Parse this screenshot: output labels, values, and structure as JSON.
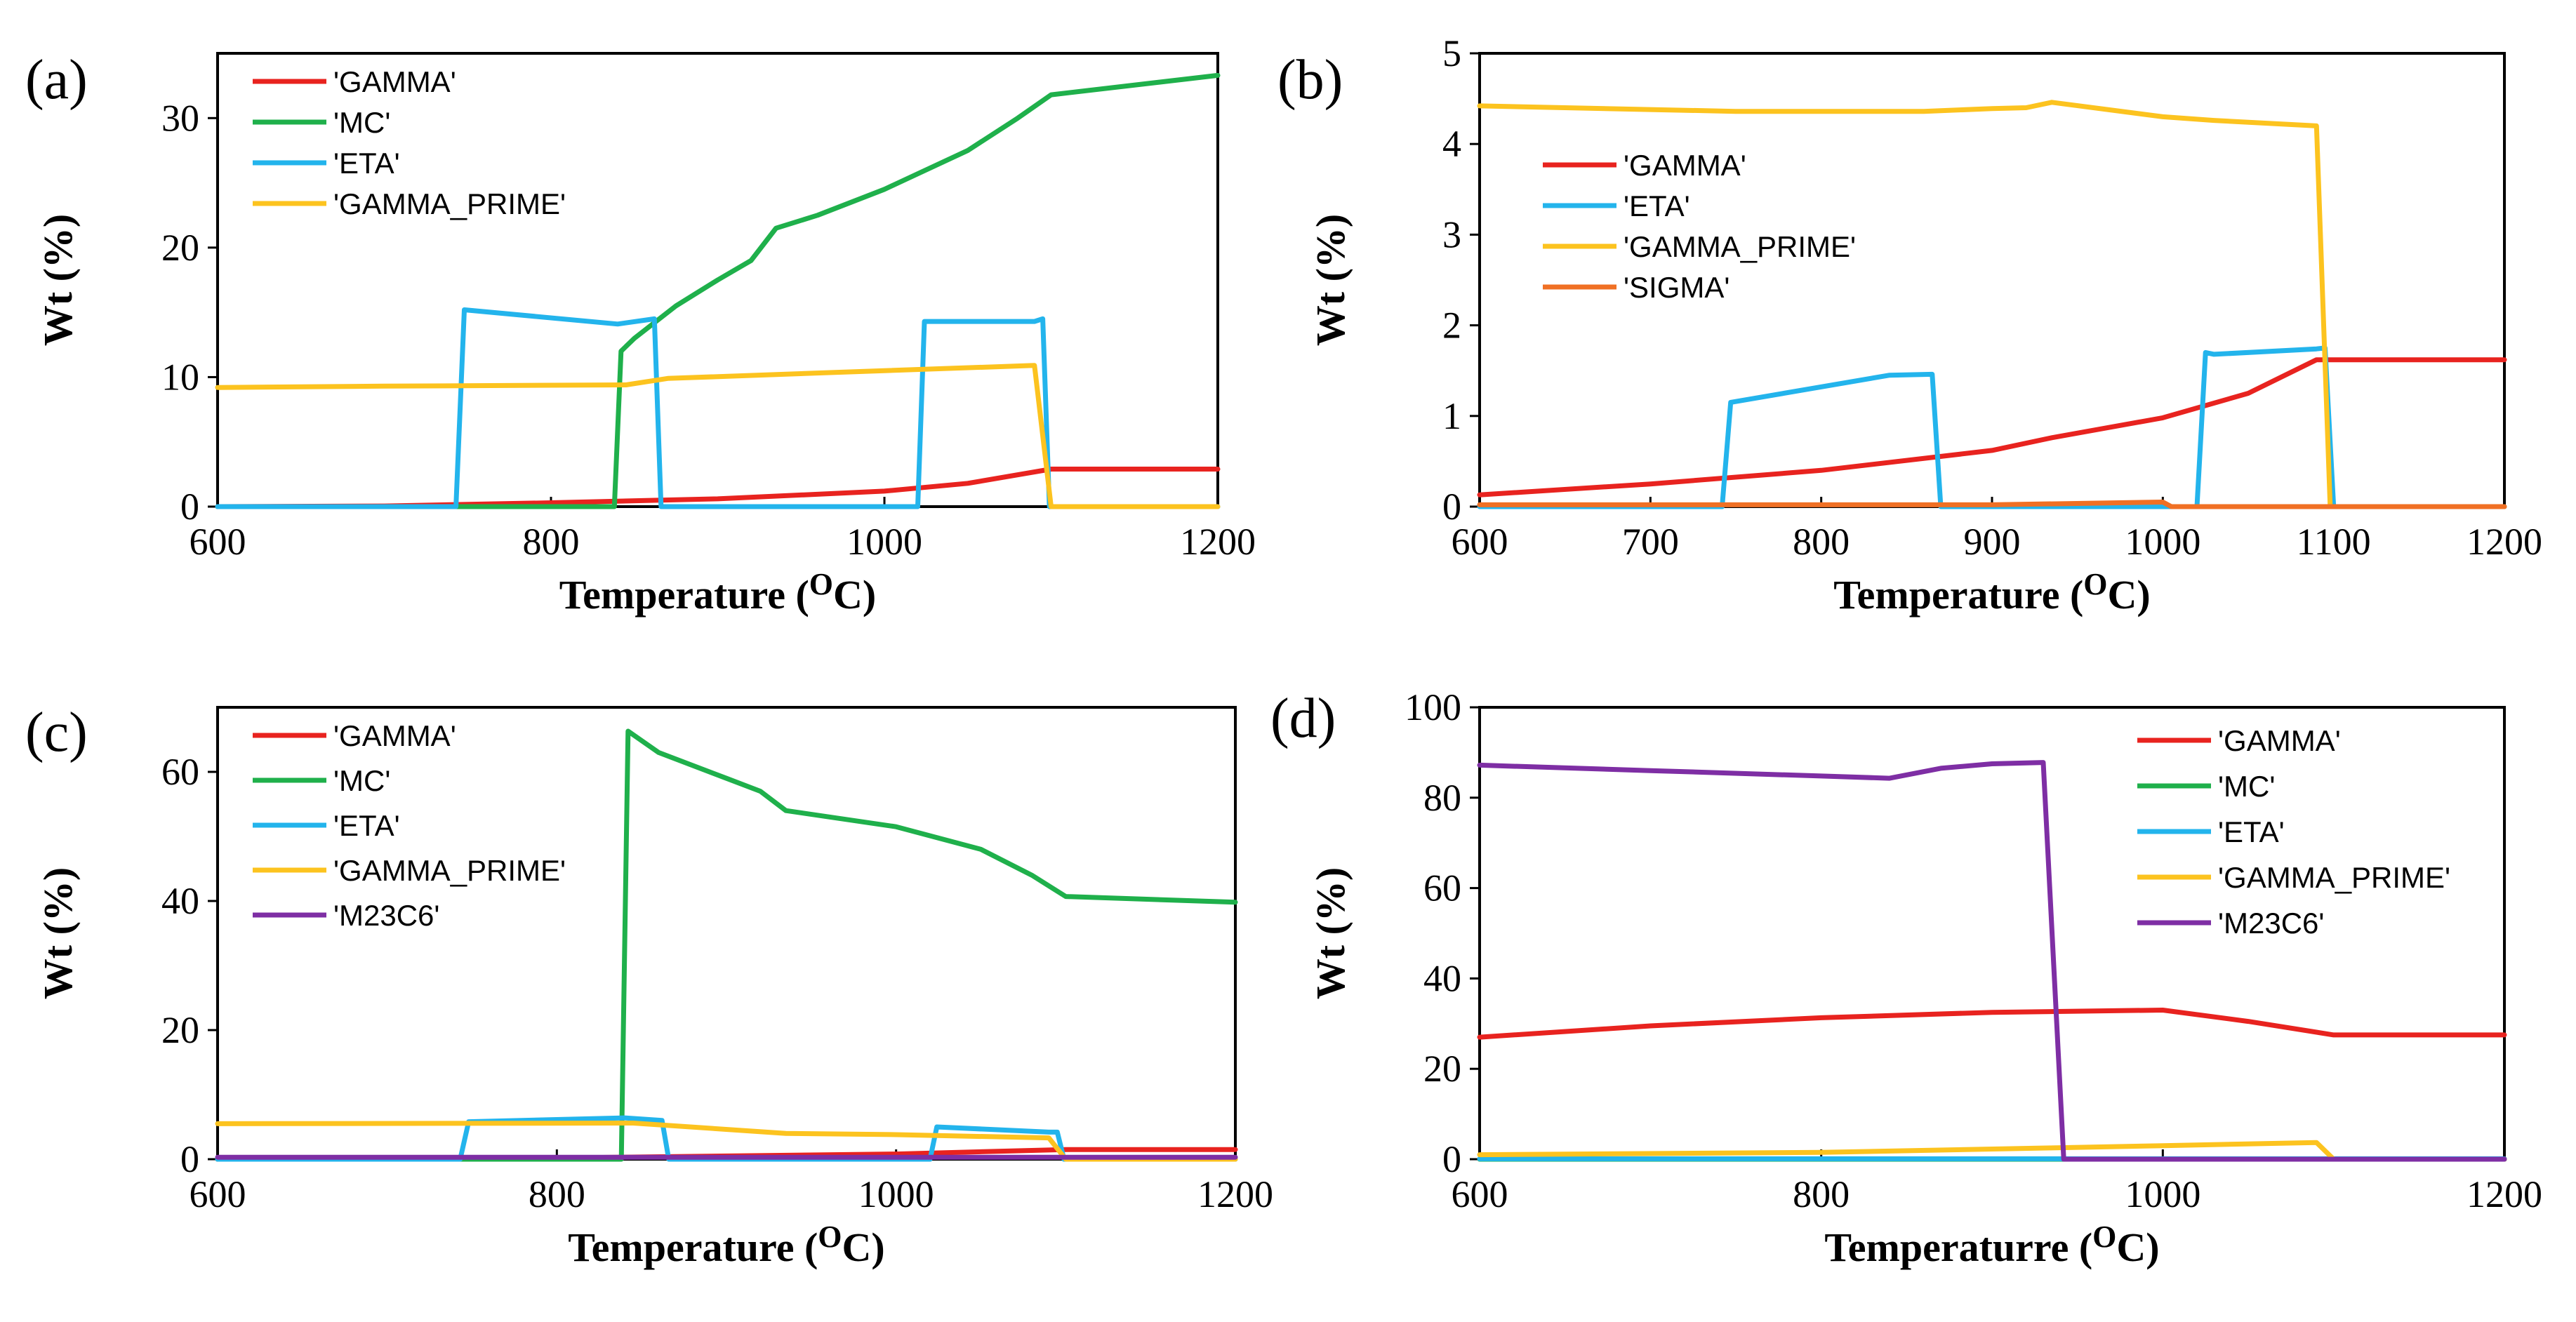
{
  "chart_data": [
    {
      "type": "line",
      "panel_label": "(a)",
      "xlabel": "Temperature",
      "xlabel_unit": "(OC)",
      "ylabel": "Wt (%)",
      "xlim": [
        600,
        1200
      ],
      "ylim": [
        0,
        35
      ],
      "xticks": [
        600,
        800,
        1000,
        1200
      ],
      "yticks": [
        0,
        10,
        20,
        30
      ],
      "legend_position": "top-left",
      "series": [
        {
          "name": "'GAMMA'",
          "color": "#e8231f",
          "points": [
            [
              600,
              0
            ],
            [
              700,
              0.05
            ],
            [
              800,
              0.3
            ],
            [
              900,
              0.6
            ],
            [
              1000,
              1.2
            ],
            [
              1050,
              1.8
            ],
            [
              1100,
              2.9
            ],
            [
              1200,
              2.9
            ]
          ]
        },
        {
          "name": "'MC'",
          "color": "#1fb04b",
          "points": [
            [
              600,
              0
            ],
            [
              838,
              0
            ],
            [
              842,
              12
            ],
            [
              850,
              13
            ],
            [
              860,
              14
            ],
            [
              875,
              15.5
            ],
            [
              900,
              17.5
            ],
            [
              920,
              19
            ],
            [
              935,
              21.5
            ],
            [
              960,
              22.5
            ],
            [
              1000,
              24.5
            ],
            [
              1050,
              27.5
            ],
            [
              1080,
              30
            ],
            [
              1100,
              31.8
            ],
            [
              1200,
              33.3
            ]
          ]
        },
        {
          "name": "'ETA'",
          "color": "#23b4ec",
          "points": [
            [
              600,
              0
            ],
            [
              743,
              0
            ],
            [
              748,
              15.2
            ],
            [
              840,
              14.1
            ],
            [
              862,
              14.5
            ],
            [
              866,
              0
            ],
            [
              1020,
              0
            ],
            [
              1024,
              14.3
            ],
            [
              1090,
              14.3
            ],
            [
              1095,
              14.5
            ],
            [
              1099,
              0
            ],
            [
              1200,
              0
            ]
          ]
        },
        {
          "name": "'GAMMA_PRIME'",
          "color": "#fcc31f",
          "points": [
            [
              600,
              9.2
            ],
            [
              700,
              9.3
            ],
            [
              845,
              9.4
            ],
            [
              870,
              9.9
            ],
            [
              1000,
              10.5
            ],
            [
              1090,
              10.9
            ],
            [
              1100,
              0
            ],
            [
              1200,
              0
            ]
          ]
        }
      ]
    },
    {
      "type": "line",
      "panel_label": "(b)",
      "xlabel": "Temperature",
      "xlabel_unit": "(OC)",
      "ylabel": "Wt (%)",
      "xlim": [
        600,
        1200
      ],
      "ylim": [
        0,
        5
      ],
      "xticks": [
        600,
        700,
        800,
        900,
        1000,
        1100,
        1200
      ],
      "yticks": [
        0,
        1,
        2,
        3,
        4,
        5
      ],
      "legend_position": "top-left",
      "series": [
        {
          "name": "'GAMMA'",
          "color": "#e8231f",
          "points": [
            [
              600,
              0.13
            ],
            [
              700,
              0.25
            ],
            [
              800,
              0.4
            ],
            [
              900,
              0.62
            ],
            [
              935,
              0.76
            ],
            [
              1000,
              0.98
            ],
            [
              1050,
              1.25
            ],
            [
              1090,
              1.62
            ],
            [
              1100,
              1.62
            ],
            [
              1200,
              1.62
            ]
          ]
        },
        {
          "name": "'ETA'",
          "color": "#23b4ec",
          "points": [
            [
              600,
              0
            ],
            [
              742,
              0
            ],
            [
              747,
              1.15
            ],
            [
              840,
              1.45
            ],
            [
              865,
              1.46
            ],
            [
              870,
              0
            ],
            [
              1020,
              0
            ],
            [
              1025,
              1.7
            ],
            [
              1030,
              1.68
            ],
            [
              1090,
              1.74
            ],
            [
              1095,
              1.75
            ],
            [
              1100,
              0
            ],
            [
              1200,
              0
            ]
          ]
        },
        {
          "name": "'GAMMA_PRIME'",
          "color": "#fcc31f",
          "points": [
            [
              600,
              4.42
            ],
            [
              750,
              4.36
            ],
            [
              860,
              4.36
            ],
            [
              900,
              4.39
            ],
            [
              920,
              4.4
            ],
            [
              935,
              4.46
            ],
            [
              1000,
              4.3
            ],
            [
              1030,
              4.26
            ],
            [
              1090,
              4.2
            ],
            [
              1098,
              0
            ],
            [
              1200,
              0
            ]
          ]
        },
        {
          "name": "'SIGMA'",
          "color": "#f07024",
          "points": [
            [
              600,
              0.02
            ],
            [
              900,
              0.02
            ],
            [
              1000,
              0.05
            ],
            [
              1005,
              0
            ],
            [
              1200,
              0
            ]
          ]
        }
      ]
    },
    {
      "type": "line",
      "panel_label": "(c)",
      "xlabel": "Temperature",
      "xlabel_unit": "(OC)",
      "ylabel": "Wt (%)",
      "xlim": [
        600,
        1200
      ],
      "ylim": [
        0,
        70
      ],
      "xticks": [
        600,
        800,
        1000,
        1200
      ],
      "yticks": [
        0,
        20,
        40,
        60
      ],
      "legend_position": "top-left",
      "series": [
        {
          "name": "'GAMMA'",
          "color": "#e8231f",
          "points": [
            [
              600,
              0
            ],
            [
              800,
              0.2
            ],
            [
              1000,
              0.8
            ],
            [
              1100,
              1.5
            ],
            [
              1200,
              1.5
            ]
          ]
        },
        {
          "name": "'MC'",
          "color": "#1fb04b",
          "points": [
            [
              600,
              0
            ],
            [
              838,
              0
            ],
            [
              842,
              66.3
            ],
            [
              860,
              63
            ],
            [
              900,
              59
            ],
            [
              920,
              57
            ],
            [
              935,
              54
            ],
            [
              1000,
              51.5
            ],
            [
              1050,
              48
            ],
            [
              1080,
              44
            ],
            [
              1100,
              40.7
            ],
            [
              1200,
              39.8
            ]
          ]
        },
        {
          "name": "'ETA'",
          "color": "#23b4ec",
          "points": [
            [
              600,
              0
            ],
            [
              743,
              0
            ],
            [
              748,
              5.8
            ],
            [
              840,
              6.4
            ],
            [
              862,
              6
            ],
            [
              866,
              0
            ],
            [
              1020,
              0
            ],
            [
              1024,
              5
            ],
            [
              1090,
              4.2
            ],
            [
              1095,
              4.2
            ],
            [
              1099,
              0
            ],
            [
              1200,
              0
            ]
          ]
        },
        {
          "name": "'GAMMA_PRIME'",
          "color": "#fcc31f",
          "points": [
            [
              600,
              5.5
            ],
            [
              845,
              5.6
            ],
            [
              935,
              4
            ],
            [
              1000,
              3.8
            ],
            [
              1090,
              3.3
            ],
            [
              1100,
              0
            ],
            [
              1200,
              0
            ]
          ]
        },
        {
          "name": "'M23C6'",
          "color": "#7e2ea4",
          "points": [
            [
              600,
              0.3
            ],
            [
              1200,
              0.3
            ]
          ]
        }
      ]
    },
    {
      "type": "line",
      "panel_label": "(d)",
      "xlabel": "Temperaturre",
      "xlabel_unit": "(OC)",
      "ylabel": "Wt (%)",
      "xlim": [
        600,
        1200
      ],
      "ylim": [
        0,
        100
      ],
      "xticks": [
        600,
        800,
        1000,
        1200
      ],
      "yticks": [
        0,
        20,
        40,
        60,
        80,
        100
      ],
      "legend_position": "top-right",
      "series": [
        {
          "name": "'GAMMA'",
          "color": "#e8231f",
          "points": [
            [
              600,
              27
            ],
            [
              700,
              29.5
            ],
            [
              800,
              31.3
            ],
            [
              900,
              32.5
            ],
            [
              1000,
              33
            ],
            [
              1050,
              30.5
            ],
            [
              1100,
              27.5
            ],
            [
              1200,
              27.5
            ]
          ]
        },
        {
          "name": "'MC'",
          "color": "#1fb04b",
          "points": [
            [
              600,
              0
            ],
            [
              1200,
              0
            ]
          ]
        },
        {
          "name": "'ETA'",
          "color": "#23b4ec",
          "points": [
            [
              600,
              0.1
            ],
            [
              1200,
              0.1
            ]
          ]
        },
        {
          "name": "'GAMMA_PRIME'",
          "color": "#fcc31f",
          "points": [
            [
              600,
              1
            ],
            [
              800,
              1.5
            ],
            [
              935,
              2.5
            ],
            [
              1000,
              3
            ],
            [
              1090,
              3.7
            ],
            [
              1100,
              0
            ],
            [
              1200,
              0
            ]
          ]
        },
        {
          "name": "'M23C6'",
          "color": "#7e2ea4",
          "points": [
            [
              600,
              87.2
            ],
            [
              700,
              86
            ],
            [
              800,
              84.8
            ],
            [
              840,
              84.3
            ],
            [
              870,
              86.5
            ],
            [
              900,
              87.5
            ],
            [
              930,
              87.8
            ],
            [
              942,
              0
            ],
            [
              1200,
              0
            ]
          ]
        }
      ]
    }
  ]
}
